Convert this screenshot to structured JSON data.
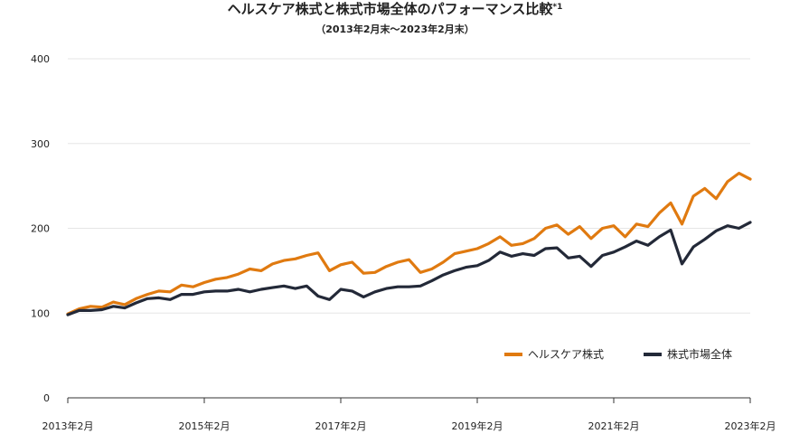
{
  "chart_data": {
    "type": "line",
    "title": "ヘルスケア株式と株式市場全体のパフォーマンス比較",
    "title_note": "*1",
    "subtitle": "（2013年2月末〜2023年2月末）",
    "xlabel": "",
    "ylabel": "",
    "x_range": [
      2013.083,
      2023.083
    ],
    "ylim": [
      0,
      400
    ],
    "y_ticks": [
      0,
      100,
      200,
      300,
      400
    ],
    "x_ticks": [
      {
        "value": 2013.083,
        "label": "2013年2月"
      },
      {
        "value": 2015.083,
        "label": "2015年2月"
      },
      {
        "value": 2017.083,
        "label": "2017年2月"
      },
      {
        "value": 2019.083,
        "label": "2019年2月"
      },
      {
        "value": 2021.083,
        "label": "2021年2月"
      },
      {
        "value": 2023.083,
        "label": "2023年2月"
      }
    ],
    "grid": true,
    "legend_position": "bottom-right",
    "series": [
      {
        "name": "ヘルスケア株式",
        "color": "#e07a10",
        "points": [
          [
            2013.083,
            99
          ],
          [
            2013.25,
            105
          ],
          [
            2013.417,
            108
          ],
          [
            2013.583,
            107
          ],
          [
            2013.75,
            113
          ],
          [
            2013.917,
            110
          ],
          [
            2014.083,
            117
          ],
          [
            2014.25,
            122
          ],
          [
            2014.417,
            126
          ],
          [
            2014.583,
            125
          ],
          [
            2014.75,
            133
          ],
          [
            2014.917,
            131
          ],
          [
            2015.083,
            136
          ],
          [
            2015.25,
            140
          ],
          [
            2015.417,
            142
          ],
          [
            2015.583,
            146
          ],
          [
            2015.75,
            152
          ],
          [
            2015.917,
            150
          ],
          [
            2016.083,
            158
          ],
          [
            2016.25,
            162
          ],
          [
            2016.417,
            164
          ],
          [
            2016.583,
            168
          ],
          [
            2016.75,
            171
          ],
          [
            2016.917,
            150
          ],
          [
            2017.083,
            157
          ],
          [
            2017.25,
            160
          ],
          [
            2017.417,
            147
          ],
          [
            2017.583,
            148
          ],
          [
            2017.75,
            155
          ],
          [
            2017.917,
            160
          ],
          [
            2018.083,
            163
          ],
          [
            2018.25,
            148
          ],
          [
            2018.417,
            152
          ],
          [
            2018.583,
            160
          ],
          [
            2018.75,
            170
          ],
          [
            2018.917,
            173
          ],
          [
            2019.083,
            176
          ],
          [
            2019.25,
            182
          ],
          [
            2019.417,
            190
          ],
          [
            2019.583,
            180
          ],
          [
            2019.75,
            182
          ],
          [
            2019.917,
            188
          ],
          [
            2020.083,
            200
          ],
          [
            2020.25,
            204
          ],
          [
            2020.417,
            193
          ],
          [
            2020.583,
            202
          ],
          [
            2020.75,
            188
          ],
          [
            2020.917,
            200
          ],
          [
            2021.083,
            203
          ],
          [
            2021.25,
            190
          ],
          [
            2021.417,
            205
          ],
          [
            2021.583,
            202
          ],
          [
            2021.75,
            218
          ],
          [
            2021.917,
            230
          ],
          [
            2022.083,
            205
          ],
          [
            2022.25,
            238
          ],
          [
            2022.417,
            247
          ],
          [
            2022.583,
            235
          ],
          [
            2022.75,
            255
          ],
          [
            2022.917,
            265
          ],
          [
            2023.083,
            258
          ]
        ]
      },
      {
        "name": "株式市場全体",
        "color": "#232938",
        "points": [
          [
            2013.083,
            98
          ],
          [
            2013.25,
            103
          ],
          [
            2013.417,
            103
          ],
          [
            2013.583,
            104
          ],
          [
            2013.75,
            108
          ],
          [
            2013.917,
            106
          ],
          [
            2014.083,
            112
          ],
          [
            2014.25,
            117
          ],
          [
            2014.417,
            118
          ],
          [
            2014.583,
            116
          ],
          [
            2014.75,
            122
          ],
          [
            2014.917,
            122
          ],
          [
            2015.083,
            125
          ],
          [
            2015.25,
            126
          ],
          [
            2015.417,
            126
          ],
          [
            2015.583,
            128
          ],
          [
            2015.75,
            125
          ],
          [
            2015.917,
            128
          ],
          [
            2016.083,
            130
          ],
          [
            2016.25,
            132
          ],
          [
            2016.417,
            129
          ],
          [
            2016.583,
            132
          ],
          [
            2016.75,
            120
          ],
          [
            2016.917,
            116
          ],
          [
            2017.083,
            128
          ],
          [
            2017.25,
            126
          ],
          [
            2017.417,
            119
          ],
          [
            2017.583,
            125
          ],
          [
            2017.75,
            129
          ],
          [
            2017.917,
            131
          ],
          [
            2018.083,
            131
          ],
          [
            2018.25,
            132
          ],
          [
            2018.417,
            138
          ],
          [
            2018.583,
            145
          ],
          [
            2018.75,
            150
          ],
          [
            2018.917,
            154
          ],
          [
            2019.083,
            156
          ],
          [
            2019.25,
            162
          ],
          [
            2019.417,
            172
          ],
          [
            2019.583,
            167
          ],
          [
            2019.75,
            170
          ],
          [
            2019.917,
            168
          ],
          [
            2020.083,
            176
          ],
          [
            2020.25,
            177
          ],
          [
            2020.417,
            165
          ],
          [
            2020.583,
            167
          ],
          [
            2020.75,
            155
          ],
          [
            2020.917,
            168
          ],
          [
            2021.083,
            172
          ],
          [
            2021.25,
            178
          ],
          [
            2021.417,
            185
          ],
          [
            2021.583,
            180
          ],
          [
            2021.75,
            190
          ],
          [
            2021.917,
            198
          ],
          [
            2022.083,
            158
          ],
          [
            2022.25,
            178
          ],
          [
            2022.417,
            187
          ],
          [
            2022.583,
            197
          ],
          [
            2022.75,
            203
          ],
          [
            2022.917,
            200
          ],
          [
            2023.083,
            207
          ]
        ]
      }
    ]
  }
}
